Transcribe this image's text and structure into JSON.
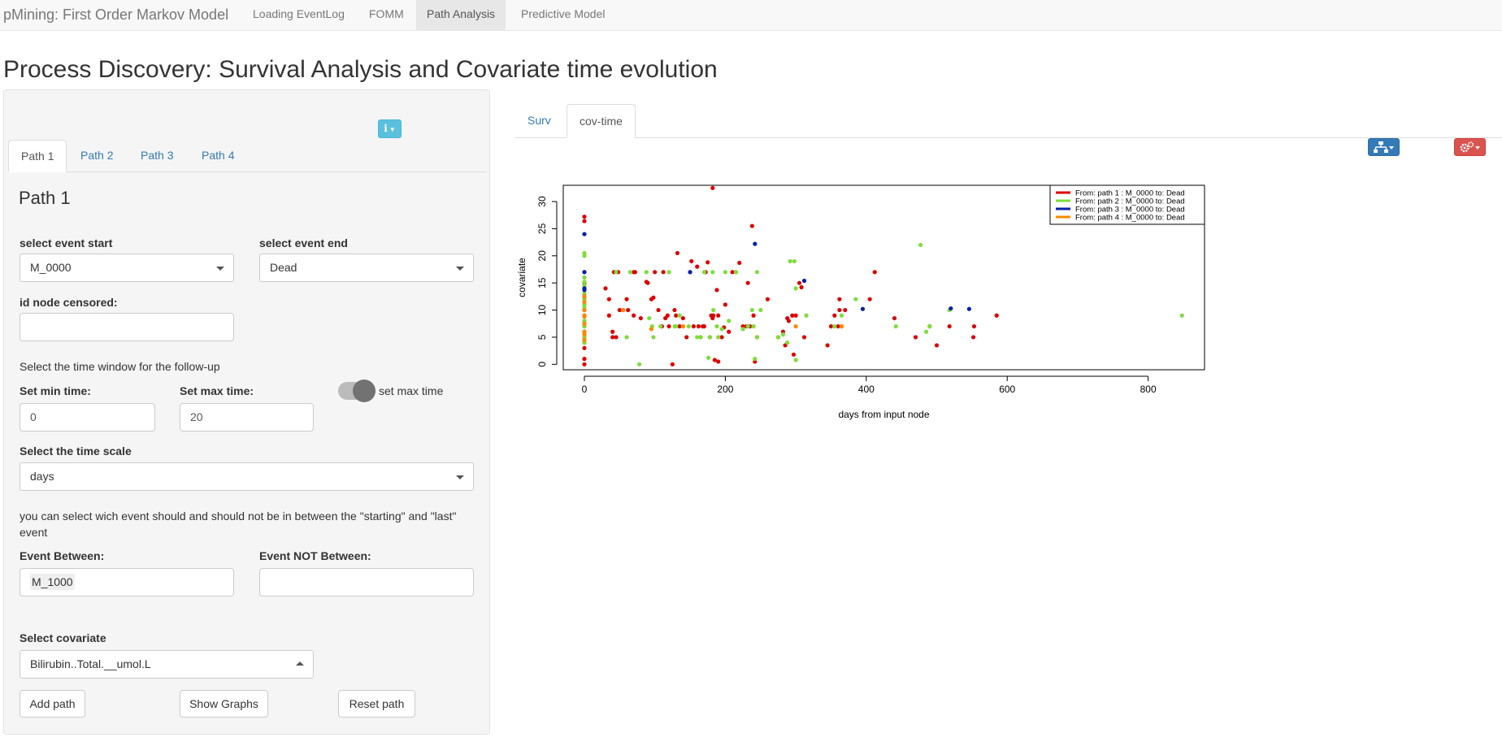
{
  "navbar": {
    "brand": "pMining: First Order Markov Model",
    "items": [
      {
        "label": "Loading EventLog",
        "active": false
      },
      {
        "label": "FOMM",
        "active": false
      },
      {
        "label": "Path Analysis",
        "active": true
      },
      {
        "label": "Predictive Model",
        "active": false
      }
    ]
  },
  "page": {
    "title": "Process Discovery: Survival Analysis and Covariate time evolution"
  },
  "sidebar": {
    "info_icon": "info-icon",
    "tabs": [
      {
        "label": "Path 1",
        "active": true
      },
      {
        "label": "Path 2",
        "active": false
      },
      {
        "label": "Path 3",
        "active": false
      },
      {
        "label": "Path 4",
        "active": false
      }
    ],
    "heading": "Path 1",
    "event_start": {
      "label": "select event start",
      "value": "M_0000"
    },
    "event_end": {
      "label": "select event end",
      "value": "Dead"
    },
    "censored": {
      "label": "id node censored:",
      "value": ""
    },
    "time_window_text": "Select the time window for the follow-up",
    "min_time": {
      "label": "Set min time:",
      "value": "0"
    },
    "max_time": {
      "label": "Set max time:",
      "value": "20"
    },
    "max_time_switch": {
      "label": "set max time",
      "on": true
    },
    "time_scale": {
      "label": "Select the time scale",
      "value": "days"
    },
    "between_text": "you can select wich event should and should not be in between the \"starting\" and \"last\" event",
    "event_between": {
      "label": "Event Between:",
      "value": "M_1000"
    },
    "event_not_between": {
      "label": "Event NOT Between:",
      "value": ""
    },
    "covariate": {
      "label": "Select covariate",
      "value": "Bilirubin..Total.__umol.L"
    },
    "buttons": {
      "add": "Add path",
      "show": "Show Graphs",
      "reset": "Reset path"
    }
  },
  "main": {
    "tabs": [
      {
        "label": "Surv",
        "active": false
      },
      {
        "label": "cov-time",
        "active": true
      }
    ],
    "tree_icon": "sitemap-icon",
    "gear_icon": "gears-icon"
  },
  "chart_data": {
    "type": "scatter",
    "xlabel": "days from input node",
    "ylabel": "covariate",
    "xlim": [
      -30,
      880
    ],
    "ylim": [
      -1,
      33
    ],
    "xticks": [
      0,
      200,
      400,
      600,
      800
    ],
    "yticks": [
      0,
      5,
      10,
      15,
      20,
      25,
      30
    ],
    "grid": false,
    "legend_position": "top-right",
    "series": [
      {
        "name": "From: path 1 : M_0000 to: Dead",
        "color": "#dd0000",
        "points": [
          [
            0,
            27.2
          ],
          [
            0,
            26.4
          ],
          [
            0,
            17
          ],
          [
            0,
            15
          ],
          [
            0,
            14
          ],
          [
            0,
            13
          ],
          [
            0,
            12
          ],
          [
            0,
            11
          ],
          [
            0,
            10
          ],
          [
            0,
            9
          ],
          [
            0,
            8
          ],
          [
            0,
            7
          ],
          [
            0,
            6
          ],
          [
            0,
            5
          ],
          [
            0,
            4
          ],
          [
            0,
            3
          ],
          [
            0,
            1
          ],
          [
            0,
            0
          ],
          [
            30,
            14
          ],
          [
            35,
            12
          ],
          [
            35,
            9
          ],
          [
            40,
            6
          ],
          [
            40,
            5
          ],
          [
            42,
            17
          ],
          [
            45,
            5
          ],
          [
            48,
            17
          ],
          [
            50,
            10
          ],
          [
            55,
            10
          ],
          [
            60,
            12
          ],
          [
            62,
            10
          ],
          [
            70,
            9
          ],
          [
            70,
            17
          ],
          [
            72,
            17
          ],
          [
            80,
            8.5
          ],
          [
            88,
            15.2
          ],
          [
            90,
            15
          ],
          [
            95,
            12
          ],
          [
            98,
            12.3
          ],
          [
            100,
            17
          ],
          [
            105,
            10
          ],
          [
            110,
            7
          ],
          [
            112,
            17
          ],
          [
            115,
            8.5
          ],
          [
            118,
            9
          ],
          [
            120,
            7
          ],
          [
            125,
            0
          ],
          [
            128,
            10
          ],
          [
            130,
            9
          ],
          [
            132,
            20.5
          ],
          [
            135,
            7
          ],
          [
            140,
            8.5
          ],
          [
            145,
            5
          ],
          [
            150,
            17
          ],
          [
            152,
            19
          ],
          [
            155,
            7
          ],
          [
            160,
            18
          ],
          [
            162,
            7
          ],
          [
            165,
            5
          ],
          [
            168,
            7
          ],
          [
            170,
            7
          ],
          [
            172,
            17
          ],
          [
            175,
            18.8
          ],
          [
            178,
            5
          ],
          [
            180,
            9
          ],
          [
            182,
            32.5
          ],
          [
            182,
            8.5
          ],
          [
            183,
            9
          ],
          [
            185,
            0.8
          ],
          [
            188,
            13.7
          ],
          [
            190,
            0.5
          ],
          [
            190,
            9
          ],
          [
            195,
            5
          ],
          [
            198,
            6.8
          ],
          [
            200,
            11
          ],
          [
            205,
            6
          ],
          [
            210,
            17
          ],
          [
            215,
            17
          ],
          [
            220,
            18.7
          ],
          [
            225,
            7
          ],
          [
            230,
            7
          ],
          [
            232,
            15
          ],
          [
            235,
            7
          ],
          [
            238,
            25.5
          ],
          [
            240,
            9
          ],
          [
            242,
            0.5
          ],
          [
            245,
            5
          ],
          [
            260,
            12
          ],
          [
            275,
            5
          ],
          [
            282,
            6
          ],
          [
            285,
            3.5
          ],
          [
            288,
            8.5
          ],
          [
            290,
            8
          ],
          [
            295,
            9
          ],
          [
            297,
            1.8
          ],
          [
            300,
            9
          ],
          [
            305,
            15
          ],
          [
            308,
            14.2
          ],
          [
            312,
            5
          ],
          [
            345,
            3.5
          ],
          [
            350,
            7
          ],
          [
            355,
            9
          ],
          [
            360,
            7
          ],
          [
            362,
            12
          ],
          [
            362,
            10
          ],
          [
            365,
            7
          ],
          [
            370,
            10
          ],
          [
            405,
            12
          ],
          [
            412,
            17
          ],
          [
            440,
            8.5
          ],
          [
            470,
            5
          ],
          [
            490,
            7
          ],
          [
            500,
            3.5
          ],
          [
            518,
            7
          ],
          [
            552,
            5
          ],
          [
            553,
            7
          ],
          [
            585,
            9
          ]
        ]
      },
      {
        "name": "From: path 2 : M_0000 to: Dead",
        "color": "#7edd3a",
        "points": [
          [
            0,
            20.5
          ],
          [
            0,
            20
          ],
          [
            0,
            16
          ],
          [
            0,
            15.2
          ],
          [
            0,
            14.5
          ],
          [
            0,
            14
          ],
          [
            0,
            13
          ],
          [
            0,
            12
          ],
          [
            0,
            11
          ],
          [
            0,
            10.5
          ],
          [
            0,
            9
          ],
          [
            0,
            8
          ],
          [
            0,
            7
          ],
          [
            0,
            6
          ],
          [
            0,
            5
          ],
          [
            0,
            4
          ],
          [
            45,
            17
          ],
          [
            60,
            5
          ],
          [
            65,
            17
          ],
          [
            78,
            0
          ],
          [
            88,
            17
          ],
          [
            92,
            8.5
          ],
          [
            96,
            7
          ],
          [
            98,
            5
          ],
          [
            108,
            7
          ],
          [
            120,
            17
          ],
          [
            128,
            7
          ],
          [
            130,
            7
          ],
          [
            135,
            9
          ],
          [
            140,
            7
          ],
          [
            148,
            7
          ],
          [
            160,
            5
          ],
          [
            165,
            5
          ],
          [
            170,
            17
          ],
          [
            176,
            1.2
          ],
          [
            178,
            5
          ],
          [
            182,
            17
          ],
          [
            183,
            10
          ],
          [
            188,
            7
          ],
          [
            190,
            5
          ],
          [
            195,
            6.5
          ],
          [
            200,
            17
          ],
          [
            205,
            8
          ],
          [
            215,
            17
          ],
          [
            225,
            6.5
          ],
          [
            232,
            7
          ],
          [
            238,
            10
          ],
          [
            240,
            7
          ],
          [
            242,
            1
          ],
          [
            245,
            17
          ],
          [
            245,
            5
          ],
          [
            250,
            10
          ],
          [
            275,
            5
          ],
          [
            282,
            5.5
          ],
          [
            288,
            4
          ],
          [
            292,
            19
          ],
          [
            298,
            19
          ],
          [
            300,
            0.8
          ],
          [
            300,
            14
          ],
          [
            315,
            9
          ],
          [
            355,
            7
          ],
          [
            365,
            9
          ],
          [
            385,
            12
          ],
          [
            442,
            7
          ],
          [
            477,
            22
          ],
          [
            485,
            6
          ],
          [
            490,
            7
          ],
          [
            518,
            10
          ],
          [
            848,
            9
          ]
        ]
      },
      {
        "name": "From: path 3 : M_0000 to: Dead",
        "color": "#0022aa",
        "points": [
          [
            0,
            24
          ],
          [
            0,
            17
          ],
          [
            0,
            14
          ],
          [
            0,
            13.7
          ],
          [
            0,
            12.5
          ],
          [
            150,
            17
          ],
          [
            242,
            22.2
          ],
          [
            312,
            15.4
          ],
          [
            395,
            10.2
          ],
          [
            520,
            10.3
          ],
          [
            546,
            10.2
          ]
        ]
      },
      {
        "name": "From: path 4 : M_0000 to: Dead",
        "color": "#ff8800",
        "points": [
          [
            0,
            12.5
          ],
          [
            0,
            11.5
          ],
          [
            0,
            10
          ],
          [
            0,
            9
          ],
          [
            0,
            8.8
          ],
          [
            0,
            7.5
          ],
          [
            0,
            6
          ],
          [
            0,
            5.5
          ],
          [
            0,
            4.5
          ],
          [
            55,
            10
          ],
          [
            95,
            6.5
          ],
          [
            140,
            7
          ],
          [
            300,
            7
          ],
          [
            365,
            7
          ]
        ]
      }
    ]
  }
}
